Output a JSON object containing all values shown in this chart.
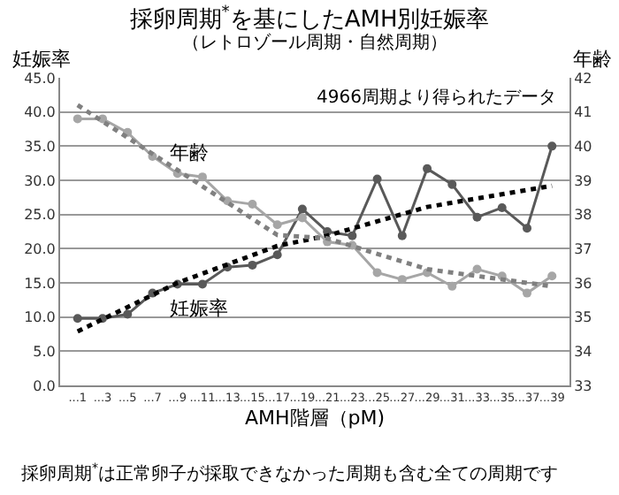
{
  "chart_data": {
    "type": "line",
    "title": "採卵周期$^{*}$を基にしたAMH別妊娠率",
    "subtitle": "（レトロゾール周期・自然周期）",
    "xlabel": "AMH階層（pM)",
    "ylabel": "妊娠率",
    "y2label": "年齢",
    "categories": [
      "...1",
      "...3",
      "...5",
      "...7",
      "...9",
      "...11",
      "...13",
      "...15",
      "...17",
      "...19",
      "...21",
      "...23",
      "...25",
      "...27",
      "...29",
      "...31",
      "...33",
      "...35",
      "...37",
      "...39"
    ],
    "series": [
      {
        "name": "妊娠率",
        "color": "#595959",
        "marker": "circle",
        "values": [
          9.8,
          9.8,
          10.4,
          13.5,
          14.8,
          14.8,
          17.3,
          17.6,
          19.1,
          25.8,
          22.5,
          21.9,
          30.2,
          21.9,
          31.7,
          29.4,
          24.6,
          26.0,
          23.0,
          35.0
        ]
      },
      {
        "name": "年齢",
        "color": "#a6a6a6",
        "marker": "circle",
        "axis": "y2",
        "values": [
          40.8,
          40.8,
          40.4,
          39.7,
          39.2,
          39.1,
          38.4,
          38.3,
          37.7,
          37.9,
          37.2,
          37.1,
          36.3,
          36.1,
          36.3,
          35.9,
          36.4,
          36.2,
          35.7,
          36.2
        ]
      },
      {
        "type": "line",
        "color": "#000000",
        "line_style": "dotted",
        "marker": "none",
        "x": [
          "...1",
          "...9",
          "...17",
          "...21",
          "...29",
          "...39"
        ],
        "values": [
          7.9,
          15.0,
          20.4,
          21.9,
          26.1,
          29.2
        ]
      },
      {
        "type": "line",
        "color": "#808080",
        "line_style": "dotted",
        "marker": "none",
        "axis": "y2",
        "x": [
          "...1",
          "...9",
          "...17",
          "...21",
          "...29",
          "...39"
        ],
        "values": [
          41.2,
          39.3,
          37.4,
          37.3,
          36.4,
          35.9
        ]
      }
    ],
    "ylim": [
      0,
      45
    ],
    "yticks": [
      {
        "value": 0,
        "label": "0.0"
      },
      {
        "value": 5,
        "label": "5.0"
      },
      {
        "value": 10,
        "label": "10.0"
      },
      {
        "value": 15,
        "label": "15.0"
      },
      {
        "value": 20,
        "label": "20.0"
      },
      {
        "value": 25,
        "label": "25.0"
      },
      {
        "value": 30,
        "label": "30.0"
      },
      {
        "value": 35,
        "label": "35.0"
      },
      {
        "value": 40,
        "label": "40.0"
      },
      {
        "value": 45,
        "label": "45.0"
      }
    ],
    "y2lim": [
      33,
      42
    ],
    "y2ticks": [
      33,
      34,
      35,
      36,
      37,
      38,
      39,
      40,
      41,
      42
    ],
    "grid": "y",
    "legend": false,
    "annotations": [
      "4966周期より得られたデータ",
      "採卵周期$^{*}$は正常卵子が採取できなかった周期も含む全ての周期です"
    ]
  }
}
